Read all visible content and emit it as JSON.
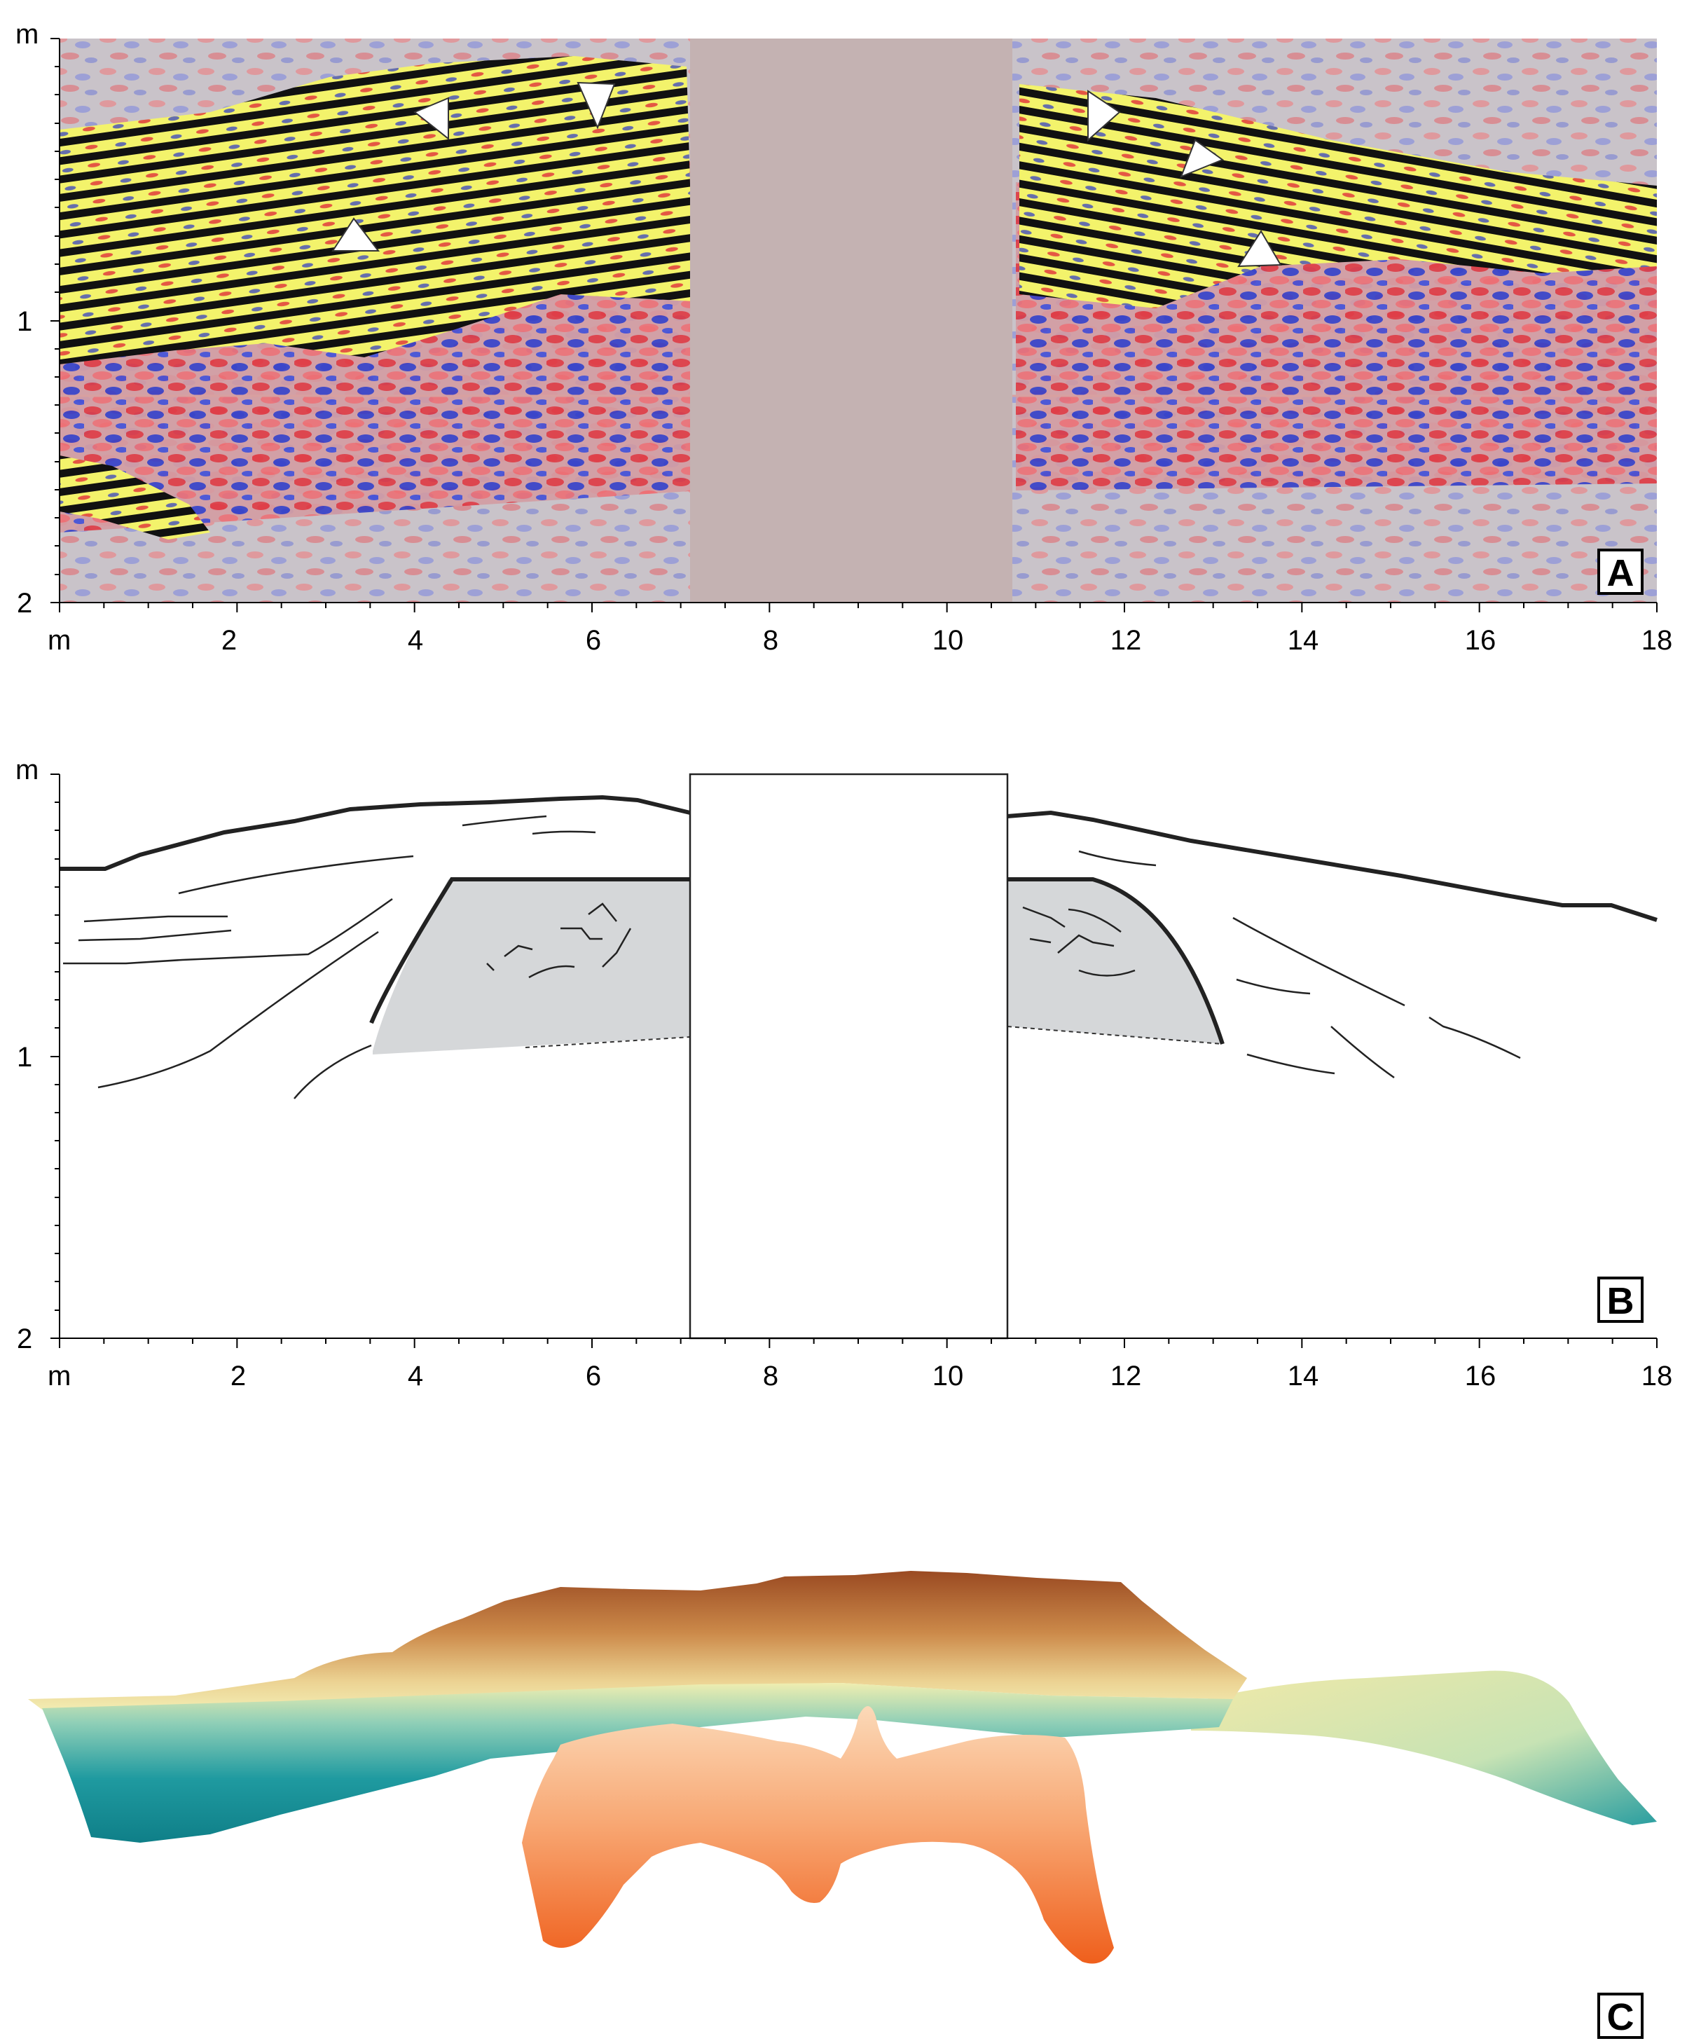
{
  "figure": {
    "panels": [
      {
        "id": "A",
        "label": "A"
      },
      {
        "id": "B",
        "label": "B"
      },
      {
        "id": "C",
        "label": "C"
      }
    ],
    "x_axis": {
      "unit_label": "m",
      "ticks": [
        "2",
        "4",
        "6",
        "8",
        "10",
        "12",
        "14",
        "16",
        "18"
      ]
    },
    "y_axis": {
      "unit_label": "m",
      "ticks": [
        "1",
        "2"
      ]
    }
  },
  "colors": {
    "radar_positive": "#f3f36b",
    "radar_negative": "#111111",
    "radar_red": "#e0303a",
    "radar_blue": "#2a36c8",
    "gap_fill": "#c4b2b2",
    "shaded_feature": "#d5d7d9",
    "surface_brown": "#a4542a",
    "surface_teal": "#138a93",
    "feature_orange": "#f06a24"
  }
}
